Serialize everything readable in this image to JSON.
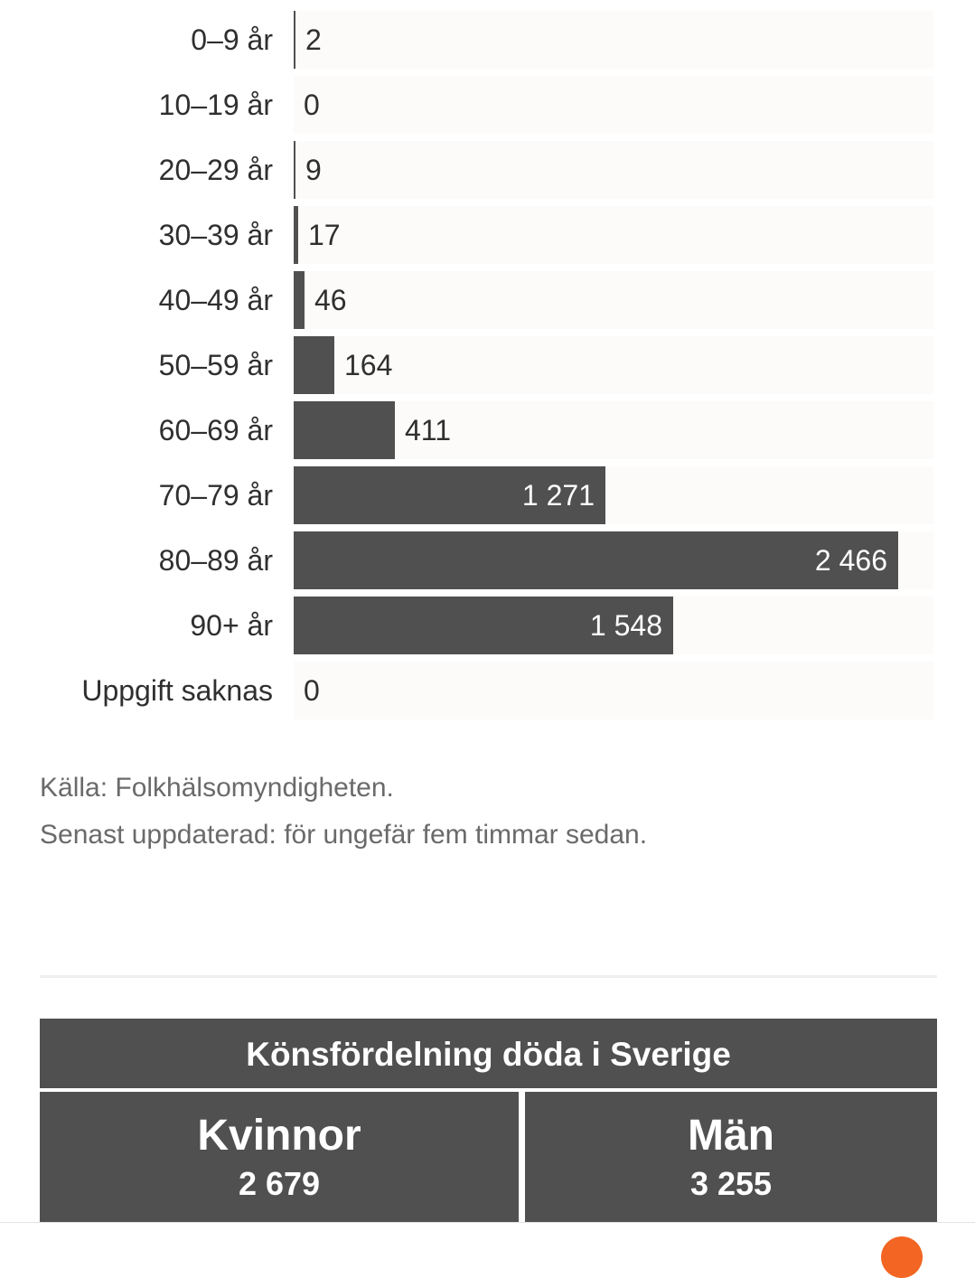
{
  "chart_data": {
    "type": "bar",
    "orientation": "horizontal",
    "title": "",
    "categories": [
      "0–9 år",
      "10–19 år",
      "20–29 år",
      "30–39 år",
      "40–49 år",
      "50–59 år",
      "60–69 år",
      "70–79 år",
      "80–89 år",
      "90+ år",
      "Uppgift saknas"
    ],
    "values": [
      2,
      0,
      9,
      17,
      46,
      164,
      411,
      1271,
      2466,
      1548,
      0
    ],
    "value_labels": [
      "2",
      "0",
      "9",
      "17",
      "46",
      "164",
      "411",
      "1 271",
      "2 466",
      "1 548",
      "0"
    ],
    "xlim": [
      0,
      2608
    ],
    "bar_color": "#505050",
    "track_color": "#fcfbf9"
  },
  "source": {
    "line1": "Källa: Folkhälsomyndigheten.",
    "line2": "Senast uppdaterad: för ungefär fem timmar sedan."
  },
  "sex_distribution": {
    "title": "Könsfördelning döda i Sverige",
    "women": {
      "label": "Kvinnor",
      "value": "2 679"
    },
    "men": {
      "label": "Män",
      "value": "3 255"
    }
  },
  "colors": {
    "accent": "#f26522",
    "box": "#505050"
  },
  "fab": {
    "icon": "scroll-top-icon"
  }
}
